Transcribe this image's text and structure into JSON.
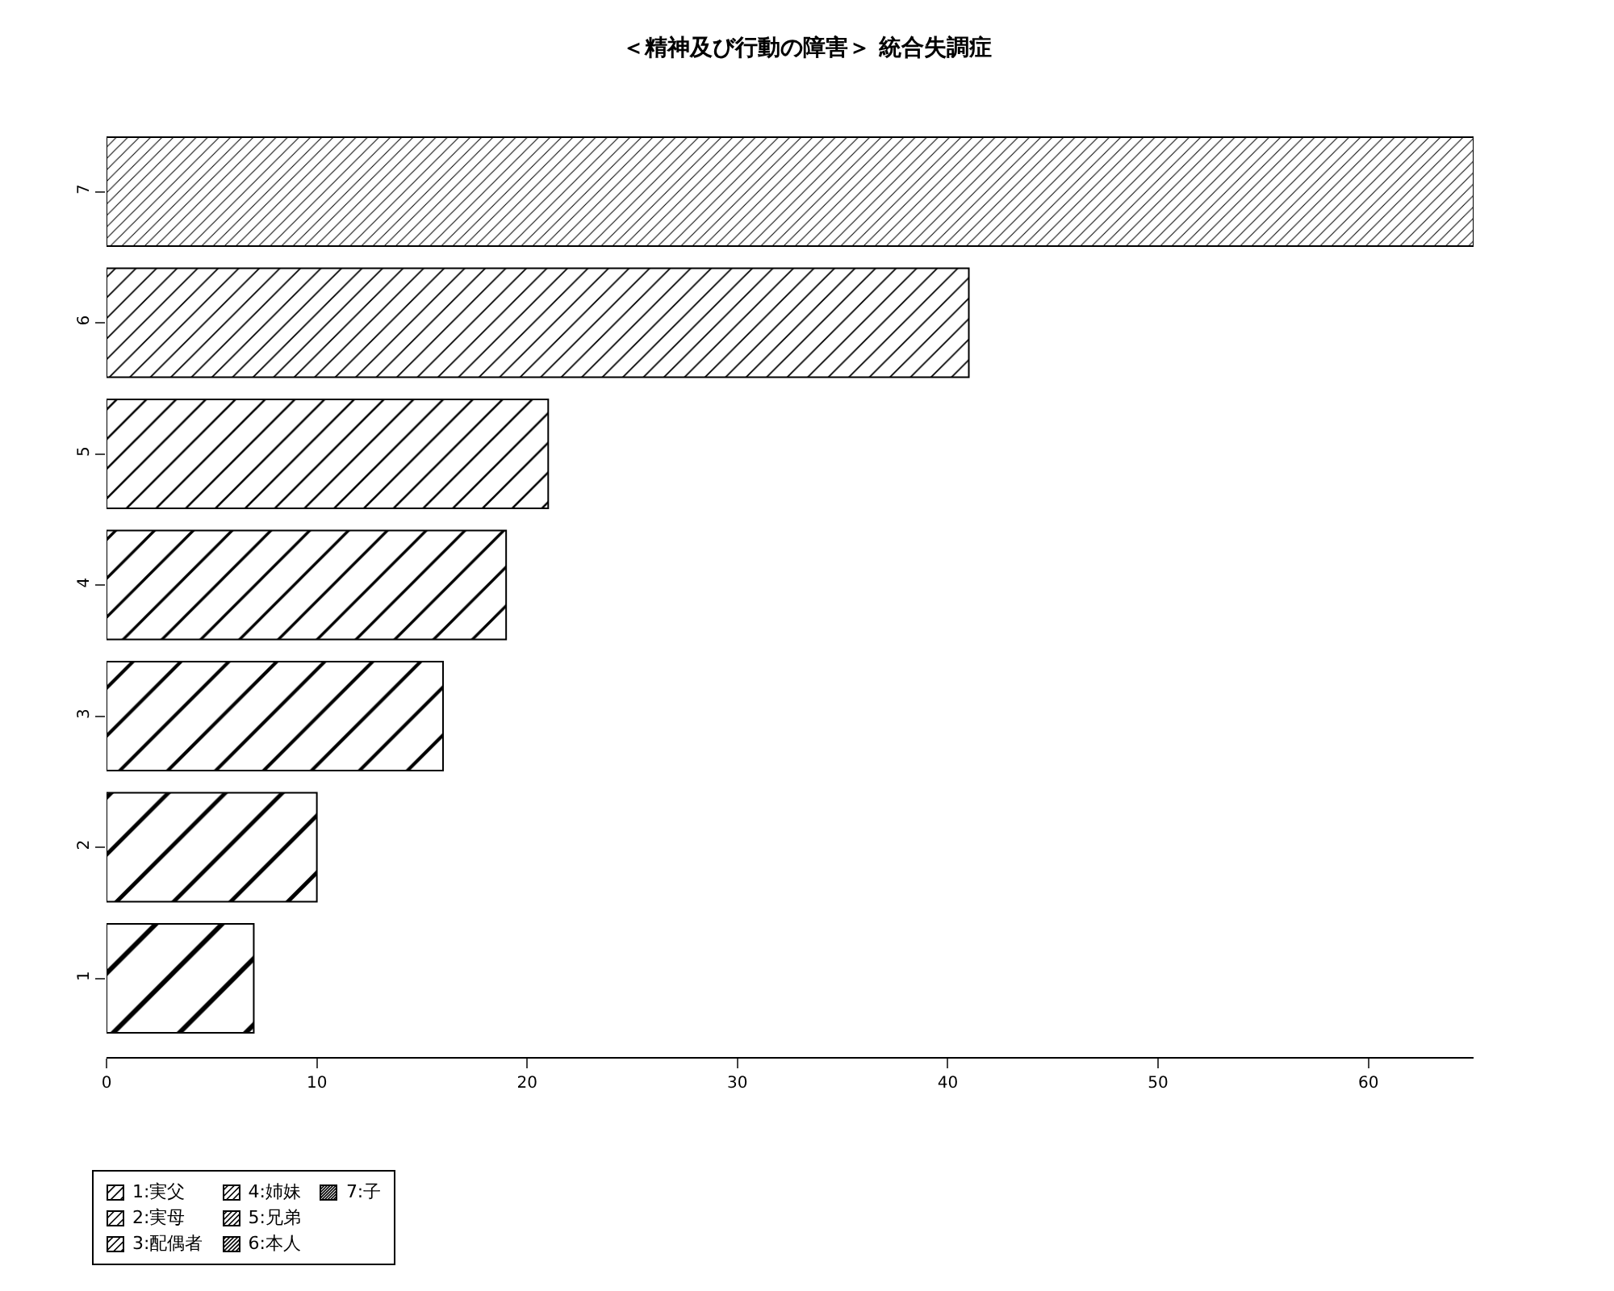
{
  "chart_data": {
    "type": "bar",
    "orientation": "horizontal",
    "title": "＜精神及び行動の障害＞ 統合失調症",
    "categories": [
      "7",
      "6",
      "5",
      "4",
      "3",
      "2",
      "1"
    ],
    "values": [
      65,
      41,
      21,
      19,
      16,
      10,
      7
    ],
    "color": "#000000",
    "annotations": [
      "1:実父",
      "2:実母",
      "3:配偶者",
      "4:姉妹",
      "5:兄弟",
      "6:本人",
      "7:子"
    ],
    "xlim": [
      0,
      65
    ],
    "xticks": [
      0,
      10,
      20,
      30,
      40,
      50,
      60
    ],
    "grid": false
  }
}
